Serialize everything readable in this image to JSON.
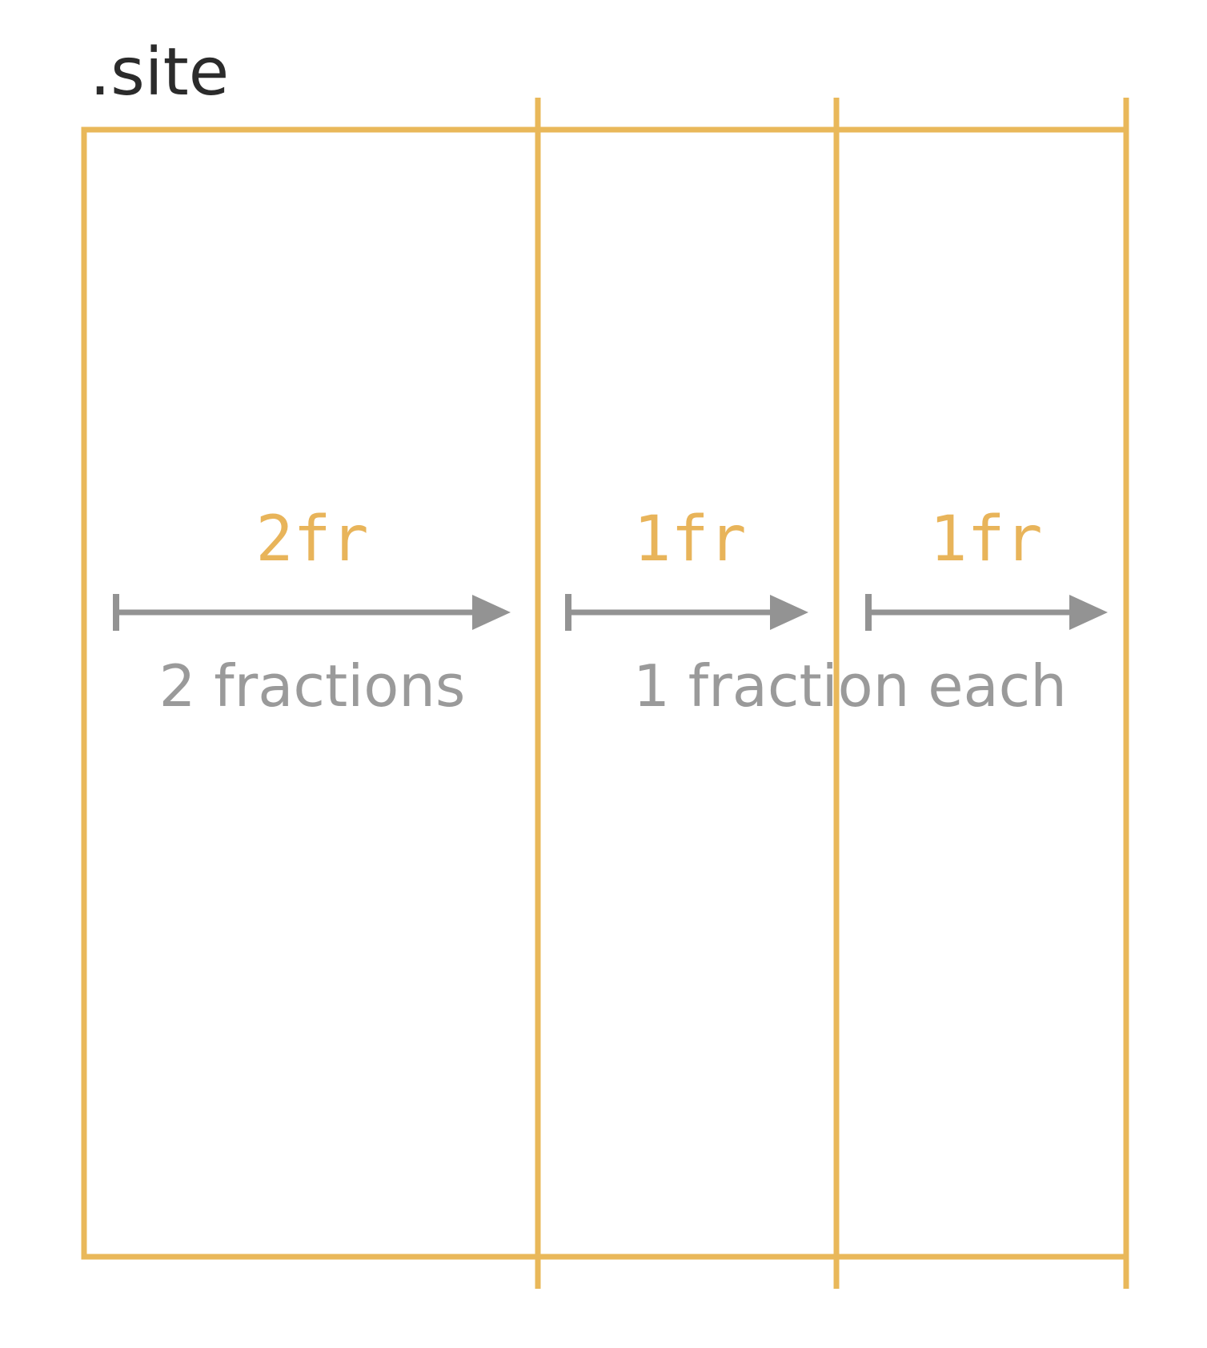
{
  "title": ".site",
  "colors": {
    "grid": "#e9b85a",
    "track_label": "#e8b45a",
    "arrow": "#939393",
    "caption": "#9a9a9a",
    "title": "#2b2b2b"
  },
  "tracks": [
    {
      "size": "2fr",
      "fraction": 2
    },
    {
      "size": "1fr",
      "fraction": 1
    },
    {
      "size": "1fr",
      "fraction": 1
    }
  ],
  "captions": {
    "left": "2 fractions",
    "right": "1 fraction each"
  }
}
